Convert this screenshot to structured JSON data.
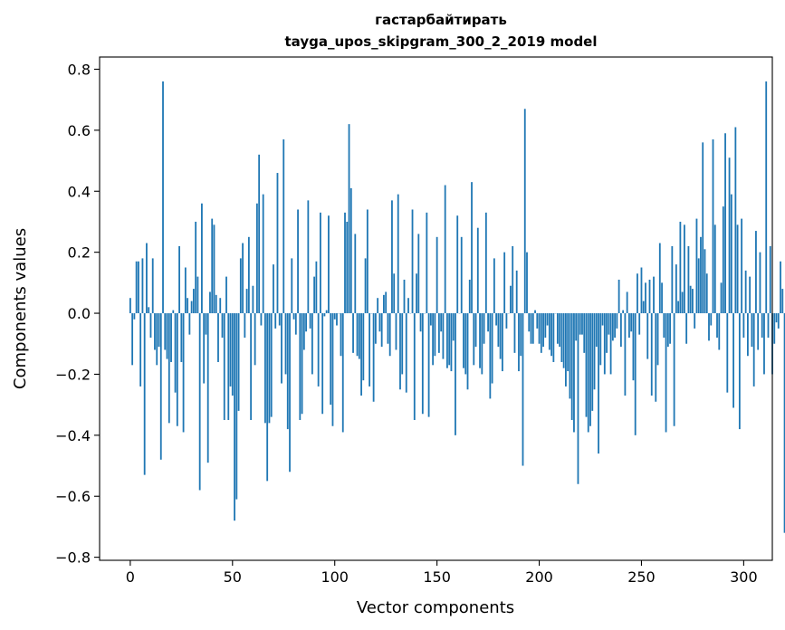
{
  "chart_data": {
    "type": "bar",
    "title_line1": "гастарбайтирать",
    "title_line2": "tayga_upos_skipgram_300_2_2019 model",
    "xlabel": "Vector components",
    "ylabel": "Components values",
    "xlim": [
      -15,
      314
    ],
    "ylim": [
      -0.81,
      0.84
    ],
    "xticks": [
      0,
      50,
      100,
      150,
      200,
      250,
      300
    ],
    "yticks": [
      0.8,
      0.6,
      0.4,
      0.2,
      0.0,
      -0.2,
      -0.4,
      -0.6,
      -0.8
    ],
    "ytick_labels": [
      "0.8",
      "0.6",
      "0.4",
      "0.2",
      "0.0",
      "−0.2",
      "−0.4",
      "−0.6",
      "−0.8"
    ],
    "grid": false,
    "bar_color": "#1f77b4",
    "values": [
      0.05,
      -0.17,
      -0.02,
      0.17,
      0.17,
      -0.24,
      0.18,
      -0.53,
      0.23,
      0.02,
      -0.08,
      0.18,
      -0.12,
      -0.17,
      -0.11,
      -0.48,
      0.76,
      -0.12,
      -0.15,
      -0.36,
      -0.16,
      0.01,
      -0.26,
      -0.37,
      0.22,
      -0.16,
      -0.39,
      0.15,
      0.05,
      -0.07,
      0.04,
      0.08,
      0.3,
      0.12,
      -0.58,
      0.36,
      -0.23,
      -0.07,
      -0.49,
      0.07,
      0.31,
      0.29,
      0.06,
      -0.16,
      0.05,
      -0.08,
      -0.35,
      0.12,
      -0.35,
      -0.24,
      -0.27,
      -0.68,
      -0.61,
      -0.32,
      0.18,
      0.23,
      -0.08,
      0.08,
      0.25,
      -0.35,
      0.09,
      -0.17,
      0.36,
      0.52,
      -0.04,
      0.39,
      -0.36,
      -0.55,
      -0.36,
      -0.34,
      0.16,
      -0.05,
      0.46,
      -0.04,
      -0.23,
      0.57,
      -0.2,
      -0.38,
      -0.52,
      0.18,
      -0.02,
      -0.07,
      0.34,
      -0.35,
      -0.33,
      -0.12,
      -0.06,
      0.37,
      -0.05,
      -0.2,
      0.12,
      0.17,
      -0.24,
      0.33,
      -0.33,
      -0.01,
      0.01,
      0.32,
      -0.3,
      -0.37,
      -0.02,
      -0.04,
      0.0,
      -0.14,
      -0.39,
      0.33,
      0.3,
      0.62,
      0.41,
      -0.13,
      0.26,
      -0.14,
      -0.15,
      -0.27,
      -0.22,
      0.18,
      0.34,
      -0.24,
      0.0,
      -0.29,
      -0.1,
      0.05,
      -0.06,
      -0.11,
      0.06,
      0.07,
      -0.1,
      -0.14,
      0.37,
      0.13,
      -0.12,
      0.39,
      -0.25,
      -0.2,
      0.11,
      -0.26,
      0.05,
      0.0,
      0.34,
      -0.35,
      0.13,
      0.26,
      -0.06,
      -0.33,
      0.0,
      0.33,
      -0.34,
      -0.04,
      -0.17,
      -0.14,
      0.25,
      -0.13,
      -0.06,
      -0.15,
      0.42,
      -0.18,
      -0.17,
      -0.19,
      -0.09,
      -0.4,
      0.32,
      0.0,
      0.25,
      -0.18,
      -0.2,
      -0.25,
      0.11,
      0.43,
      -0.17,
      -0.11,
      0.28,
      -0.18,
      -0.2,
      -0.1,
      0.33,
      -0.06,
      -0.28,
      -0.23,
      0.18,
      -0.04,
      -0.11,
      -0.15,
      -0.19,
      0.2,
      -0.05,
      0.0,
      0.09,
      0.22,
      -0.13,
      0.14,
      -0.19,
      -0.14,
      -0.5,
      0.67,
      0.2,
      -0.06,
      -0.1,
      -0.1,
      0.01,
      -0.05,
      -0.1,
      -0.13,
      -0.11,
      -0.08,
      -0.04,
      -0.12,
      -0.14,
      -0.16,
      0.0,
      -0.1,
      -0.11,
      -0.16,
      -0.18,
      -0.24,
      -0.19,
      -0.28,
      -0.35,
      -0.39,
      -0.09,
      -0.56,
      -0.07,
      -0.07,
      -0.13,
      -0.34,
      -0.39,
      -0.37,
      -0.32,
      -0.25,
      -0.11,
      -0.46,
      -0.17,
      -0.04,
      -0.2,
      -0.13,
      -0.07,
      -0.2,
      -0.09,
      -0.08,
      -0.05,
      0.11,
      -0.11,
      0.01,
      -0.27,
      0.07,
      -0.08,
      -0.06,
      -0.22,
      -0.4,
      0.13,
      -0.07,
      0.15,
      0.04,
      0.1,
      -0.15,
      0.11,
      -0.27,
      0.12,
      -0.29,
      -0.17,
      0.23,
      0.1,
      -0.08,
      -0.39,
      -0.11,
      -0.1,
      0.22,
      -0.37,
      0.16,
      0.04,
      0.3,
      0.07,
      0.29,
      -0.1,
      0.22,
      0.09,
      0.08,
      -0.05,
      0.31,
      0.18,
      0.25,
      0.56,
      0.21,
      0.13,
      -0.09,
      -0.04,
      0.57,
      0.29,
      -0.08,
      -0.12,
      0.1,
      0.35,
      0.59,
      -0.26,
      0.51,
      0.39,
      -0.31,
      0.61,
      0.29,
      -0.38,
      0.31,
      -0.08,
      0.14,
      -0.14,
      0.12,
      -0.11,
      -0.24,
      0.27,
      -0.12,
      0.2,
      -0.08,
      -0.2,
      0.76,
      -0.08,
      0.22,
      -0.2,
      -0.1,
      -0.03,
      -0.05,
      0.17,
      0.08,
      -0.72
    ]
  }
}
